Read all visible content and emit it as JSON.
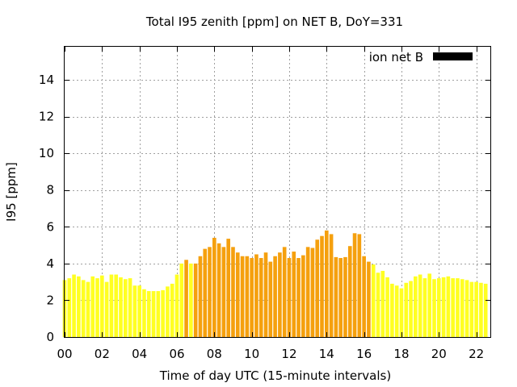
{
  "chart_data": {
    "type": "bar",
    "title": "Total I95 zenith [ppm] on NET B, DoY=331",
    "xlabel": "Time of day UTC (15-minute intervals)",
    "ylabel": "I95 [ppm]",
    "xlim": [
      0,
      22.75
    ],
    "ylim": [
      0,
      15.8
    ],
    "x_ticks": [
      0,
      2,
      4,
      6,
      8,
      10,
      12,
      14,
      16,
      18,
      20,
      22
    ],
    "x_tick_labels": [
      "00",
      "02",
      "04",
      "06",
      "08",
      "10",
      "12",
      "14",
      "16",
      "18",
      "20",
      "22"
    ],
    "y_ticks": [
      0,
      2,
      4,
      6,
      8,
      10,
      12,
      14
    ],
    "y_tick_labels": [
      "0",
      "2",
      "4",
      "6",
      "8",
      "10",
      "12",
      "14"
    ],
    "grid": true,
    "legend": {
      "placement": "top-right",
      "entries": [
        {
          "label": "ion net B",
          "color": "#000000"
        }
      ]
    },
    "bar_interval_hours": 0.25,
    "bar_fill_fraction": 0.8,
    "level_colors": {
      "low": "#ffff22",
      "medium": "#f5a00e"
    },
    "x": [
      0.0,
      0.25,
      0.5,
      0.75,
      1.0,
      1.25,
      1.5,
      1.75,
      2.0,
      2.25,
      2.5,
      2.75,
      3.0,
      3.25,
      3.5,
      3.75,
      4.0,
      4.25,
      4.5,
      4.75,
      5.0,
      5.25,
      5.5,
      5.75,
      6.0,
      6.25,
      6.5,
      6.75,
      7.0,
      7.25,
      7.5,
      7.75,
      8.0,
      8.25,
      8.5,
      8.75,
      9.0,
      9.25,
      9.5,
      9.75,
      10.0,
      10.25,
      10.5,
      10.75,
      11.0,
      11.25,
      11.5,
      11.75,
      12.0,
      12.25,
      12.5,
      12.75,
      13.0,
      13.25,
      13.5,
      13.75,
      14.0,
      14.25,
      14.5,
      14.75,
      15.0,
      15.25,
      15.5,
      15.75,
      16.0,
      16.25,
      16.5,
      16.75,
      17.0,
      17.25,
      17.5,
      17.75,
      18.0,
      18.25,
      18.5,
      18.75,
      19.0,
      19.25,
      19.5,
      19.75,
      20.0,
      20.25,
      20.5,
      20.75,
      21.0,
      21.25,
      21.5,
      21.75,
      22.0,
      22.25,
      22.5
    ],
    "values": [
      3.1,
      3.2,
      3.4,
      3.3,
      3.1,
      3.0,
      3.3,
      3.2,
      3.35,
      3.0,
      3.4,
      3.4,
      3.25,
      3.15,
      3.2,
      2.8,
      2.8,
      2.6,
      2.5,
      2.5,
      2.5,
      2.55,
      2.75,
      2.9,
      3.4,
      4.0,
      4.2,
      4.0,
      4.0,
      4.4,
      4.8,
      4.9,
      5.4,
      5.1,
      4.9,
      5.35,
      4.9,
      4.6,
      4.4,
      4.4,
      4.3,
      4.5,
      4.3,
      4.6,
      4.1,
      4.4,
      4.6,
      4.9,
      4.3,
      4.65,
      4.3,
      4.45,
      4.9,
      4.85,
      5.3,
      5.5,
      5.8,
      5.6,
      4.35,
      4.3,
      4.35,
      4.95,
      5.65,
      5.6,
      4.4,
      4.1,
      3.95,
      3.5,
      3.6,
      3.25,
      2.9,
      2.8,
      2.65,
      2.95,
      3.05,
      3.3,
      3.4,
      3.2,
      3.45,
      3.15,
      3.2,
      3.25,
      3.3,
      3.2,
      3.2,
      3.15,
      3.1,
      3.0,
      3.0,
      2.95,
      2.9
    ],
    "levels": [
      "low",
      "low",
      "low",
      "low",
      "low",
      "low",
      "low",
      "low",
      "low",
      "low",
      "low",
      "low",
      "low",
      "low",
      "low",
      "low",
      "low",
      "low",
      "low",
      "low",
      "low",
      "low",
      "low",
      "low",
      "low",
      "low",
      "medium",
      "low",
      "medium",
      "medium",
      "medium",
      "medium",
      "medium",
      "medium",
      "medium",
      "medium",
      "medium",
      "medium",
      "medium",
      "medium",
      "medium",
      "medium",
      "medium",
      "medium",
      "medium",
      "medium",
      "medium",
      "medium",
      "medium",
      "medium",
      "medium",
      "medium",
      "medium",
      "medium",
      "medium",
      "medium",
      "medium",
      "medium",
      "medium",
      "medium",
      "medium",
      "medium",
      "medium",
      "medium",
      "medium",
      "medium",
      "low",
      "low",
      "low",
      "low",
      "low",
      "low",
      "low",
      "low",
      "low",
      "low",
      "low",
      "low",
      "low",
      "low",
      "low",
      "low",
      "low",
      "low",
      "low",
      "low",
      "low",
      "low",
      "low",
      "low",
      "low"
    ]
  }
}
